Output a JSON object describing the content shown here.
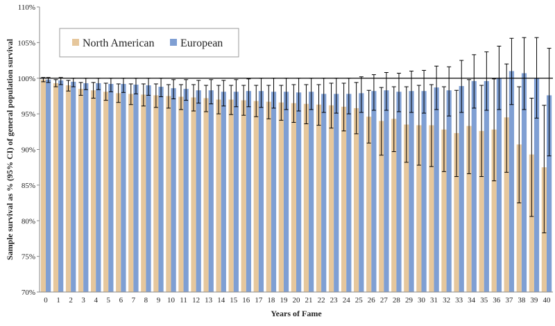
{
  "chart_data": {
    "type": "bar",
    "xlabel": "Years of Fame",
    "ylabel": "Sample survival as % (95% CI) of general population survival",
    "ylim": [
      70,
      110
    ],
    "yticks": [
      "70%",
      "75%",
      "80%",
      "85%",
      "90%",
      "95%",
      "100%",
      "105%",
      "110%"
    ],
    "ytick_values": [
      70,
      75,
      80,
      85,
      90,
      95,
      100,
      105,
      110
    ],
    "reference_line": 100,
    "grid": false,
    "legend_position": "top-left",
    "categories": [
      "0",
      "1",
      "2",
      "3",
      "4",
      "5",
      "6",
      "7",
      "8",
      "9",
      "10",
      "11",
      "12",
      "13",
      "14",
      "15",
      "16",
      "17",
      "18",
      "19",
      "20",
      "21",
      "22",
      "23",
      "24",
      "25",
      "26",
      "27",
      "28",
      "29",
      "30",
      "31",
      "32",
      "33",
      "34",
      "35",
      "36",
      "37",
      "38",
      "39",
      "40"
    ],
    "series": [
      {
        "name": "North American",
        "color": "#e6c79c",
        "values": [
          99.8,
          99.3,
          99.0,
          98.5,
          98.3,
          98.1,
          97.9,
          97.8,
          97.7,
          97.6,
          97.5,
          97.4,
          97.3,
          97.2,
          97.0,
          97.0,
          96.9,
          96.8,
          96.7,
          96.6,
          96.5,
          96.4,
          96.3,
          96.2,
          96.0,
          95.8,
          94.6,
          94.0,
          94.3,
          93.5,
          93.4,
          93.4,
          92.8,
          92.3,
          93.3,
          92.6,
          92.8,
          94.5,
          90.7,
          89.3,
          87.5
        ],
        "ci_low": [
          99.5,
          98.8,
          98.2,
          97.6,
          97.2,
          96.9,
          96.6,
          96.3,
          96.1,
          95.9,
          95.8,
          95.6,
          95.4,
          95.3,
          95.0,
          94.9,
          94.8,
          94.6,
          94.3,
          94.1,
          93.8,
          93.6,
          93.4,
          93.0,
          92.6,
          92.2,
          90.9,
          89.2,
          89.7,
          88.2,
          87.8,
          87.6,
          86.9,
          86.2,
          86.6,
          86.2,
          85.6,
          86.8,
          82.5,
          80.6,
          78.3
        ],
        "ci_high": [
          100.1,
          99.8,
          99.7,
          99.4,
          99.4,
          99.3,
          99.2,
          99.2,
          99.2,
          99.2,
          99.1,
          99.1,
          99.1,
          99.0,
          99.0,
          99.0,
          99.0,
          99.0,
          99.0,
          99.0,
          99.1,
          99.1,
          99.1,
          99.3,
          99.3,
          99.4,
          98.3,
          98.7,
          98.8,
          98.8,
          99.0,
          99.1,
          98.8,
          98.3,
          99.8,
          99.0,
          99.9,
          102.0,
          98.8,
          97.2,
          96.2
        ]
      },
      {
        "name": "European",
        "color": "#7f9fd3",
        "values": [
          99.8,
          99.7,
          99.5,
          99.3,
          99.3,
          99.2,
          99.2,
          99.1,
          99.0,
          98.8,
          98.6,
          98.5,
          98.3,
          98.3,
          98.1,
          98.1,
          98.2,
          98.2,
          98.1,
          98.1,
          98.0,
          98.1,
          97.8,
          97.8,
          97.8,
          97.9,
          98.2,
          98.3,
          98.1,
          98.2,
          98.2,
          98.7,
          98.3,
          98.9,
          99.6,
          99.6,
          100.0,
          101.0,
          100.7,
          100.0,
          97.6
        ],
        "ci_low": [
          99.4,
          99.1,
          98.8,
          98.4,
          98.4,
          98.1,
          98.0,
          97.8,
          97.6,
          97.4,
          97.1,
          96.9,
          96.5,
          96.4,
          96.1,
          96.0,
          96.0,
          95.9,
          95.8,
          95.6,
          95.4,
          95.6,
          95.2,
          95.1,
          95.0,
          95.2,
          95.5,
          95.5,
          95.3,
          95.2,
          95.1,
          95.6,
          94.7,
          95.2,
          95.8,
          95.5,
          95.6,
          96.3,
          95.6,
          94.4,
          89.1
        ],
        "ci_high": [
          100.1,
          100.1,
          100.0,
          100.0,
          100.0,
          100.0,
          100.0,
          100.0,
          100.0,
          100.0,
          99.8,
          99.8,
          99.7,
          99.8,
          99.7,
          99.8,
          99.9,
          100.0,
          100.0,
          100.0,
          100.0,
          100.0,
          100.0,
          100.0,
          100.0,
          100.2,
          100.5,
          100.8,
          100.7,
          101.0,
          101.1,
          101.7,
          101.6,
          102.5,
          103.3,
          103.7,
          104.5,
          105.6,
          105.7,
          105.7,
          104.2
        ]
      }
    ]
  }
}
